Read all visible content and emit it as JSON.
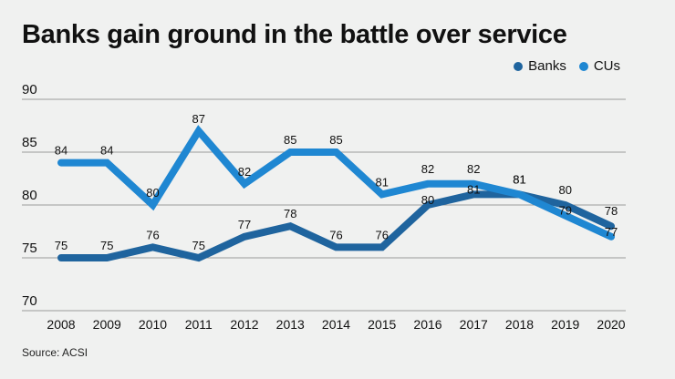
{
  "chart_data": {
    "type": "line",
    "title": "Banks gain ground in the battle over service",
    "xlabel": "",
    "ylabel": "",
    "x": [
      "2008",
      "2009",
      "2010",
      "2011",
      "2012",
      "2013",
      "2014",
      "2015",
      "2016",
      "2017",
      "2018",
      "2019",
      "2020"
    ],
    "ylim": [
      70,
      90
    ],
    "yticks": [
      90,
      85,
      80,
      75,
      70
    ],
    "grid": true,
    "legend_position": "top-right",
    "series": [
      {
        "name": "Banks",
        "color": "#1f649e",
        "values": [
          75,
          75,
          76,
          75,
          77,
          78,
          76,
          76,
          80,
          81,
          81,
          80,
          78
        ]
      },
      {
        "name": "CUs",
        "color": "#1f87d2",
        "values": [
          84,
          84,
          80,
          87,
          82,
          85,
          85,
          81,
          82,
          82,
          81,
          79,
          77
        ]
      }
    ],
    "source": "Source: ACSI"
  }
}
